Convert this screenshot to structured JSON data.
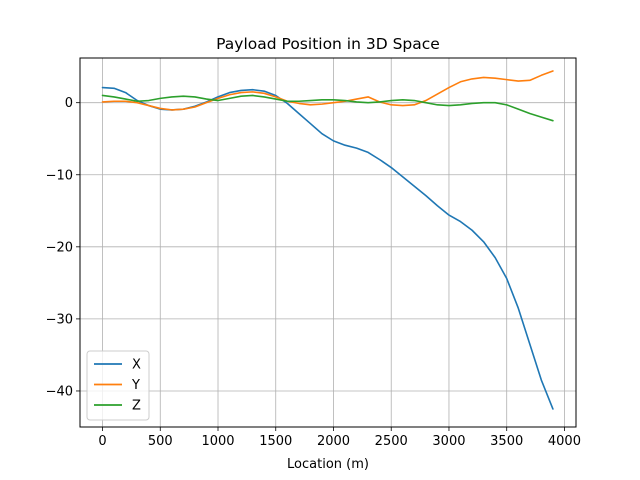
{
  "chart_data": {
    "type": "line",
    "title": "Payload Position in 3D Space",
    "xlabel": "Location (m)",
    "ylabel": "",
    "xlim": [
      -195,
      4100
    ],
    "ylim": [
      -45,
      6.2
    ],
    "grid": true,
    "legend_position": "lower-left",
    "x_ticks": [
      0,
      500,
      1000,
      1500,
      2000,
      2500,
      3000,
      3500,
      4000
    ],
    "y_ticks": [
      0,
      -10,
      -20,
      -30,
      -40
    ],
    "x_tick_labels": [
      "0",
      "500",
      "1000",
      "1500",
      "2000",
      "2500",
      "3000",
      "3500",
      "4000"
    ],
    "y_tick_labels": [
      "0",
      "−10",
      "−20",
      "−30",
      "−40"
    ],
    "series": [
      {
        "name": "X",
        "color": "#1f77b4",
        "x": [
          0,
          100,
          200,
          300,
          400,
          500,
          600,
          700,
          800,
          900,
          1000,
          1100,
          1200,
          1300,
          1400,
          1500,
          1600,
          1700,
          1800,
          1900,
          2000,
          2100,
          2200,
          2300,
          2400,
          2500,
          2600,
          2700,
          2800,
          2900,
          3000,
          3100,
          3200,
          3300,
          3400,
          3500,
          3600,
          3700,
          3800,
          3900
        ],
        "y": [
          2.1,
          2.0,
          1.4,
          0.3,
          -0.4,
          -0.9,
          -1.0,
          -0.9,
          -0.5,
          0.1,
          0.8,
          1.4,
          1.7,
          1.8,
          1.6,
          1.0,
          -0.1,
          -1.5,
          -2.9,
          -4.3,
          -5.3,
          -5.9,
          -6.3,
          -6.9,
          -7.9,
          -9.0,
          -10.3,
          -11.6,
          -12.9,
          -14.3,
          -15.6,
          -16.5,
          -17.7,
          -19.3,
          -21.5,
          -24.4,
          -28.5,
          -33.5,
          -38.5,
          -42.5
        ]
      },
      {
        "name": "Y",
        "color": "#ff7f0e",
        "x": [
          0,
          100,
          200,
          300,
          400,
          500,
          600,
          700,
          800,
          900,
          1000,
          1100,
          1200,
          1300,
          1400,
          1500,
          1600,
          1700,
          1800,
          1900,
          2000,
          2100,
          2200,
          2300,
          2400,
          2500,
          2600,
          2700,
          2800,
          2900,
          3000,
          3100,
          3200,
          3300,
          3400,
          3500,
          3600,
          3700,
          3800,
          3900
        ],
        "y": [
          0.1,
          0.2,
          0.2,
          0.0,
          -0.4,
          -0.8,
          -1.0,
          -0.9,
          -0.6,
          0.0,
          0.6,
          1.1,
          1.4,
          1.5,
          1.3,
          0.8,
          0.2,
          -0.1,
          -0.3,
          -0.2,
          0.0,
          0.2,
          0.5,
          0.8,
          0.1,
          -0.3,
          -0.4,
          -0.3,
          0.3,
          1.2,
          2.1,
          2.9,
          3.3,
          3.5,
          3.4,
          3.2,
          3.0,
          3.1,
          3.8,
          4.4
        ]
      },
      {
        "name": "Z",
        "color": "#2ca02c",
        "x": [
          0,
          100,
          200,
          300,
          400,
          500,
          600,
          700,
          800,
          900,
          1000,
          1100,
          1200,
          1300,
          1400,
          1500,
          1600,
          1700,
          1800,
          1900,
          2000,
          2100,
          2200,
          2300,
          2400,
          2500,
          2600,
          2700,
          2800,
          2900,
          3000,
          3100,
          3200,
          3300,
          3400,
          3500,
          3600,
          3700,
          3800,
          3900
        ],
        "y": [
          1.0,
          0.8,
          0.5,
          0.2,
          0.3,
          0.6,
          0.8,
          0.9,
          0.8,
          0.5,
          0.3,
          0.6,
          0.9,
          1.0,
          0.8,
          0.5,
          0.2,
          0.2,
          0.3,
          0.4,
          0.4,
          0.3,
          0.1,
          0.0,
          0.1,
          0.3,
          0.4,
          0.3,
          0.0,
          -0.3,
          -0.4,
          -0.3,
          -0.1,
          0.0,
          0.0,
          -0.3,
          -0.9,
          -1.5,
          -2.0,
          -2.5
        ]
      }
    ]
  }
}
